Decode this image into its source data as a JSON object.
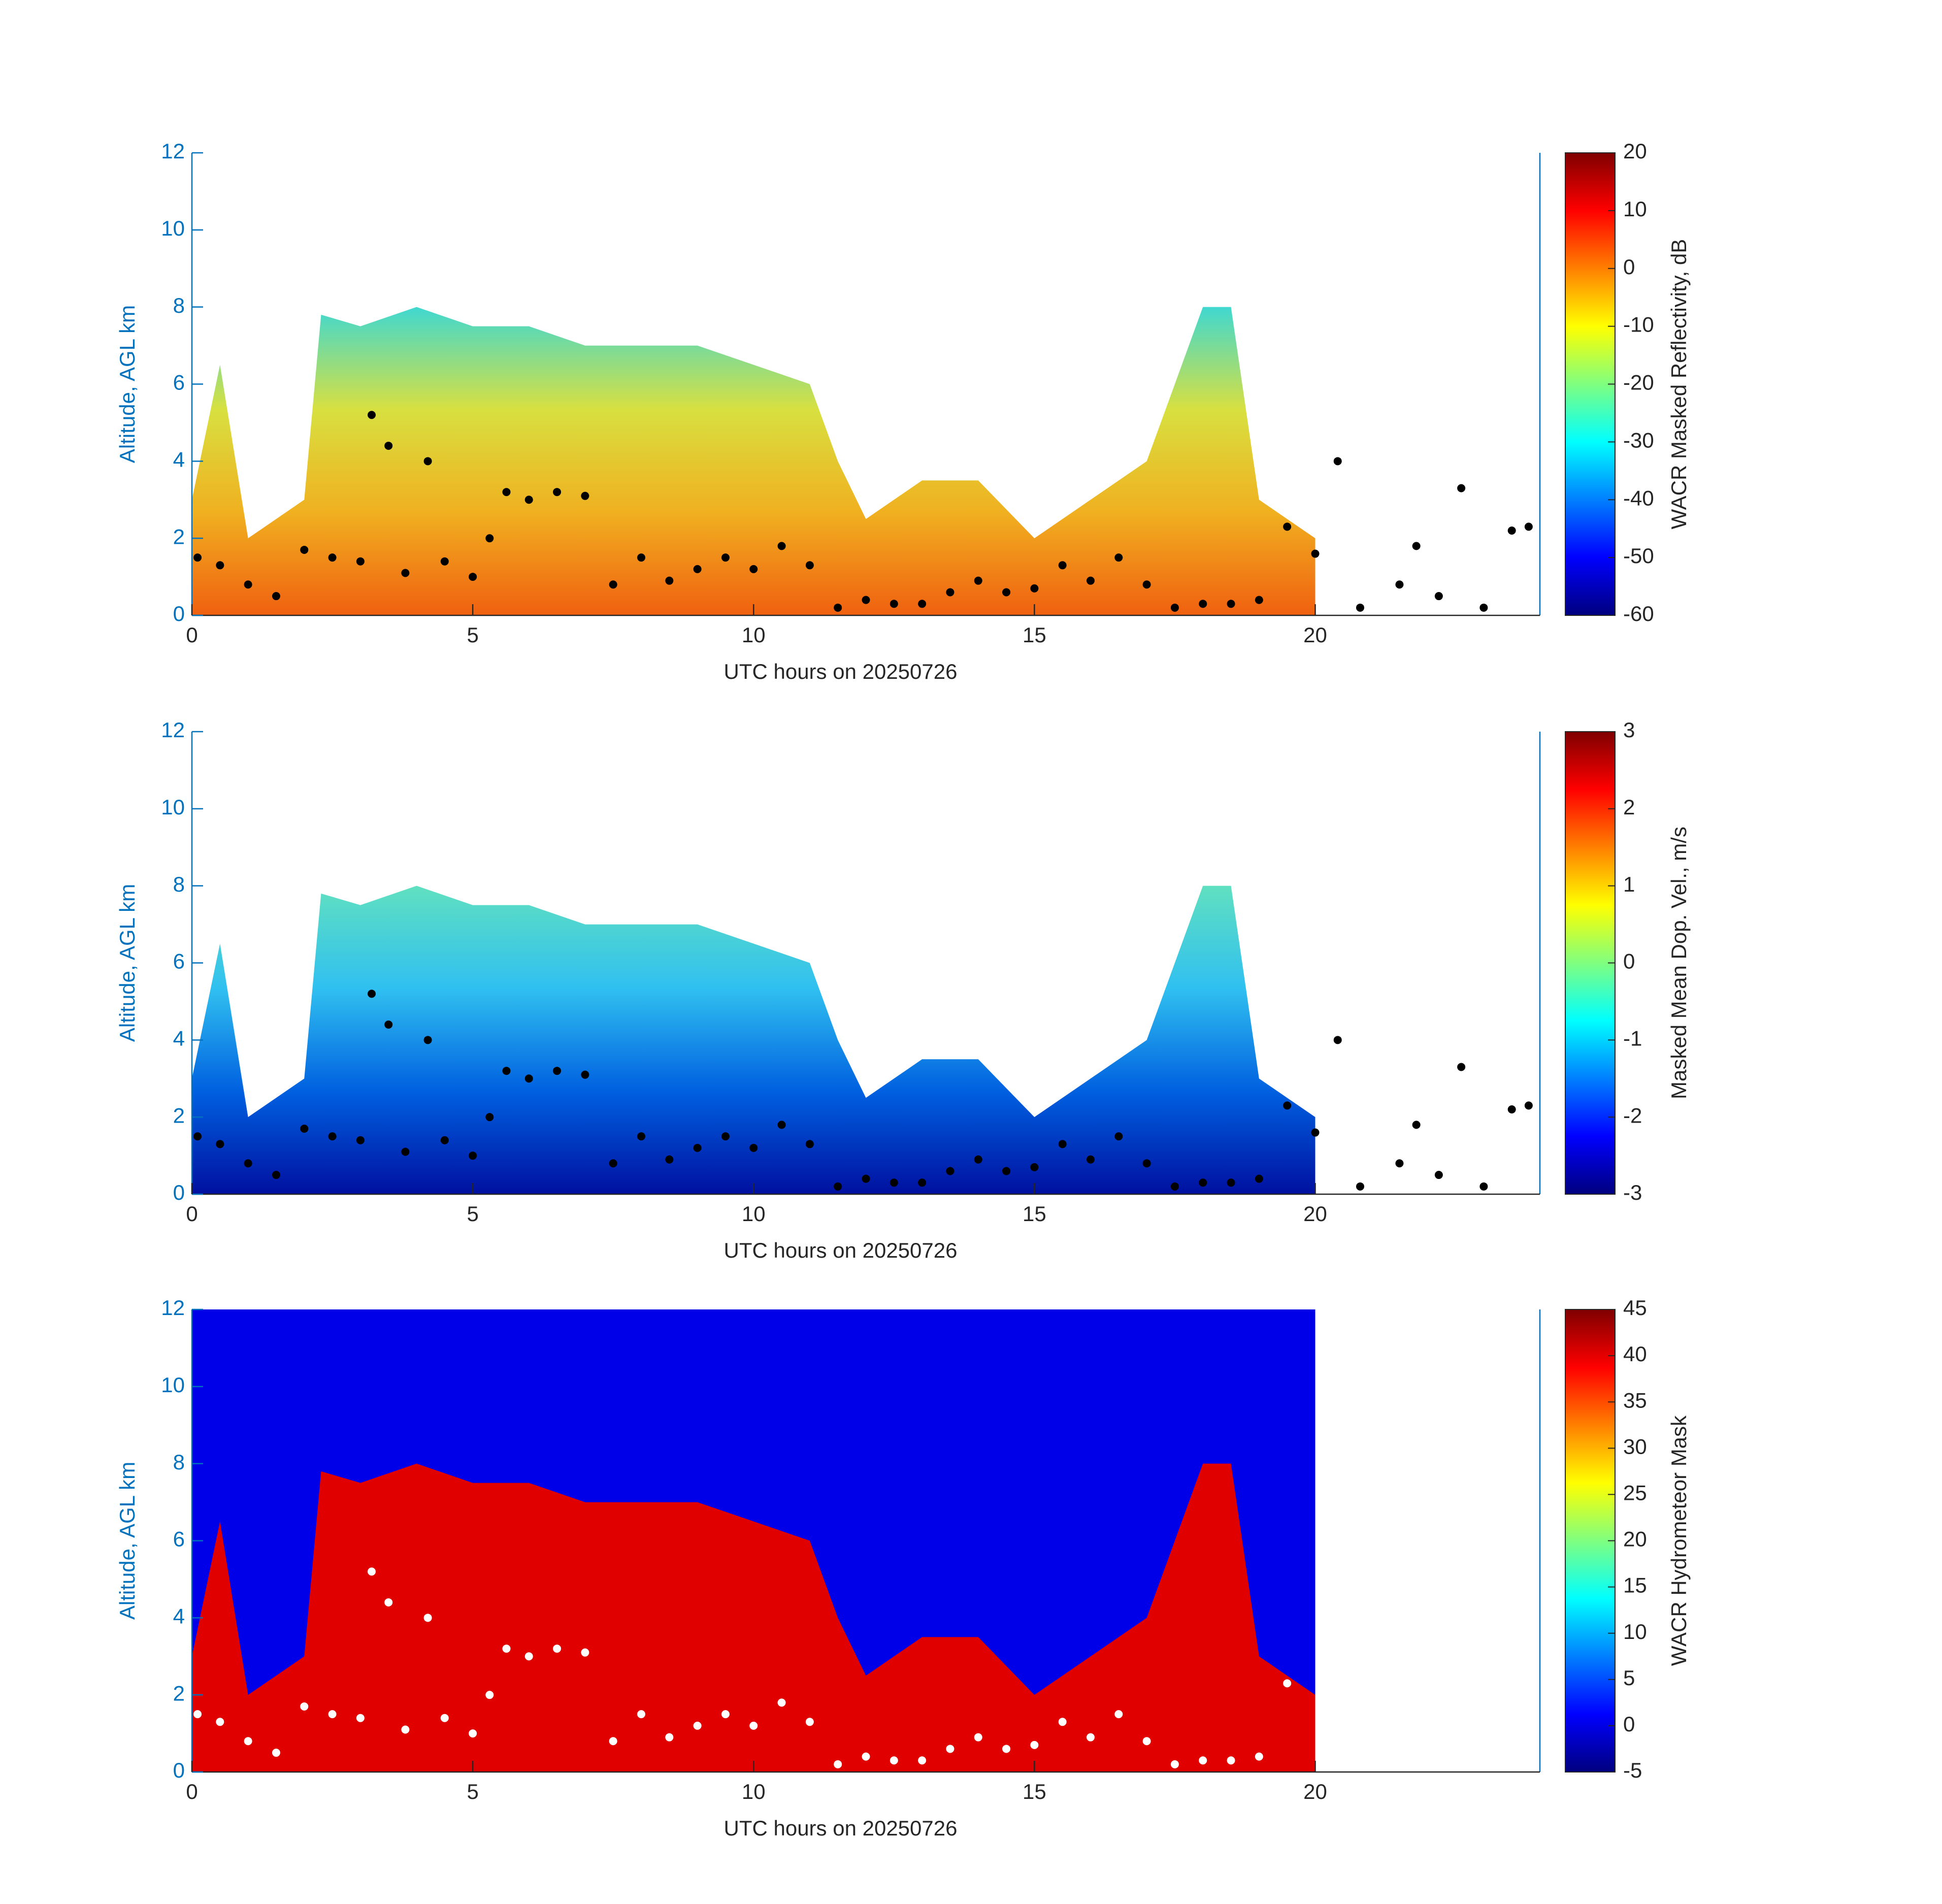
{
  "chart_data": [
    {
      "type": "area",
      "xlabel": "UTC hours on 20250726",
      "ylabel": "Altitude, AGL km",
      "xlim": [
        0,
        24
      ],
      "xticks": [
        0,
        5,
        10,
        15,
        20
      ],
      "ylim": [
        0,
        12
      ],
      "yticks": [
        0,
        2,
        4,
        6,
        8,
        10,
        12
      ],
      "area_colors": [
        "#f06010",
        "#f0b020",
        "#d8e040",
        "#40d8d0"
      ],
      "echo_top": {
        "x": [
          0,
          0.5,
          1,
          2,
          2.3,
          3,
          4,
          5,
          6,
          7,
          8,
          9,
          10,
          11,
          11.5,
          12,
          13,
          14,
          15,
          16,
          17,
          18,
          18.5,
          19,
          19.5,
          20
        ],
        "values": [
          3,
          6.5,
          2,
          3,
          7.8,
          7.5,
          8,
          7.5,
          7.5,
          7,
          7,
          7,
          6.5,
          6,
          4,
          2.5,
          3.5,
          3.5,
          2,
          3,
          4,
          8,
          8,
          3,
          2.5,
          2
        ]
      },
      "cloud_base": {
        "color": "#000000",
        "x": [
          0.1,
          0.5,
          1,
          1.5,
          2,
          2.5,
          3,
          3.2,
          3.5,
          3.8,
          4.2,
          4.5,
          5,
          5.3,
          5.6,
          6,
          6.5,
          7,
          7.5,
          8,
          8.5,
          9,
          9.5,
          10,
          10.5,
          11,
          11.5,
          12,
          12.5,
          13,
          13.5,
          14,
          14.5,
          15,
          15.5,
          16,
          16.5,
          17,
          17.5,
          18,
          18.5,
          19,
          19.5,
          20,
          20.4,
          20.8,
          21.5,
          21.8,
          22.2,
          22.6,
          23,
          23.5,
          23.8
        ],
        "values": [
          1.5,
          1.3,
          0.8,
          0.5,
          1.7,
          1.5,
          1.4,
          5.2,
          4.4,
          1.1,
          4.0,
          1.4,
          1.0,
          2.0,
          3.2,
          3.0,
          3.2,
          3.1,
          0.8,
          1.5,
          0.9,
          1.2,
          1.5,
          1.2,
          1.8,
          1.3,
          0.2,
          0.4,
          0.3,
          0.3,
          0.6,
          0.9,
          0.6,
          0.7,
          1.3,
          0.9,
          1.5,
          0.8,
          0.2,
          0.3,
          0.3,
          0.4,
          2.3,
          1.6,
          4.0,
          0.2,
          0.8,
          1.8,
          0.5,
          3.3,
          0.2,
          2.2,
          2.3
        ]
      },
      "colorbar": {
        "label": "WACR Masked Reflectivity, dB",
        "lim": [
          -60,
          20
        ],
        "ticks": [
          -60,
          -50,
          -40,
          -30,
          -20,
          -10,
          0,
          10,
          20
        ]
      }
    },
    {
      "type": "area",
      "xlabel": "UTC hours on 20250726",
      "ylabel": "Altitude, AGL km",
      "xlim": [
        0,
        24
      ],
      "xticks": [
        0,
        5,
        10,
        15,
        20
      ],
      "ylim": [
        0,
        12
      ],
      "yticks": [
        0,
        2,
        4,
        6,
        8,
        10,
        12
      ],
      "area_colors": [
        "#0010a0",
        "#0060e0",
        "#30c0f0",
        "#60e0c0"
      ],
      "echo_top": {
        "x": [
          0,
          0.5,
          1,
          2,
          2.3,
          3,
          4,
          5,
          6,
          7,
          8,
          9,
          10,
          11,
          11.5,
          12,
          13,
          14,
          15,
          16,
          17,
          18,
          18.5,
          19,
          19.5,
          20
        ],
        "values": [
          3,
          6.5,
          2,
          3,
          7.8,
          7.5,
          8,
          7.5,
          7.5,
          7,
          7,
          7,
          6.5,
          6,
          4,
          2.5,
          3.5,
          3.5,
          2,
          3,
          4,
          8,
          8,
          3,
          2.5,
          2
        ]
      },
      "cloud_base": {
        "color": "#000000",
        "x": [
          0.1,
          0.5,
          1,
          1.5,
          2,
          2.5,
          3,
          3.2,
          3.5,
          3.8,
          4.2,
          4.5,
          5,
          5.3,
          5.6,
          6,
          6.5,
          7,
          7.5,
          8,
          8.5,
          9,
          9.5,
          10,
          10.5,
          11,
          11.5,
          12,
          12.5,
          13,
          13.5,
          14,
          14.5,
          15,
          15.5,
          16,
          16.5,
          17,
          17.5,
          18,
          18.5,
          19,
          19.5,
          20,
          20.4,
          20.8,
          21.5,
          21.8,
          22.2,
          22.6,
          23,
          23.5,
          23.8
        ],
        "values": [
          1.5,
          1.3,
          0.8,
          0.5,
          1.7,
          1.5,
          1.4,
          5.2,
          4.4,
          1.1,
          4.0,
          1.4,
          1.0,
          2.0,
          3.2,
          3.0,
          3.2,
          3.1,
          0.8,
          1.5,
          0.9,
          1.2,
          1.5,
          1.2,
          1.8,
          1.3,
          0.2,
          0.4,
          0.3,
          0.3,
          0.6,
          0.9,
          0.6,
          0.7,
          1.3,
          0.9,
          1.5,
          0.8,
          0.2,
          0.3,
          0.3,
          0.4,
          2.3,
          1.6,
          4.0,
          0.2,
          0.8,
          1.8,
          0.5,
          3.3,
          0.2,
          2.2,
          2.3
        ]
      },
      "colorbar": {
        "label": "Masked Mean Dop. Vel., m/s",
        "lim": [
          -3,
          3
        ],
        "ticks": [
          -3,
          -2,
          -1,
          0,
          1,
          2,
          3
        ]
      }
    },
    {
      "type": "area",
      "xlabel": "UTC hours on 20250726",
      "ylabel": "Altitude, AGL km",
      "xlim": [
        0,
        24
      ],
      "xticks": [
        0,
        5,
        10,
        15,
        20
      ],
      "ylim": [
        0,
        12
      ],
      "yticks": [
        0,
        2,
        4,
        6,
        8,
        10,
        12
      ],
      "background": {
        "color": "#0000e8",
        "x": [
          0,
          20
        ]
      },
      "area_colors": [
        "#e00000",
        "#e00000",
        "#e00000",
        "#e00000"
      ],
      "echo_top": {
        "x": [
          0,
          0.5,
          1,
          2,
          2.3,
          3,
          4,
          5,
          6,
          7,
          8,
          9,
          10,
          11,
          11.5,
          12,
          13,
          14,
          15,
          16,
          17,
          18,
          18.5,
          19,
          19.5,
          20
        ],
        "values": [
          3,
          6.5,
          2,
          3,
          7.8,
          7.5,
          8,
          7.5,
          7.5,
          7,
          7,
          7,
          6.5,
          6,
          4,
          2.5,
          3.5,
          3.5,
          2,
          3,
          4,
          8,
          8,
          3,
          2.5,
          2
        ]
      },
      "cloud_base": {
        "color": "#ffffff",
        "x": [
          0.1,
          0.5,
          1,
          1.5,
          2,
          2.5,
          3,
          3.2,
          3.5,
          3.8,
          4.2,
          4.5,
          5,
          5.3,
          5.6,
          6,
          6.5,
          7,
          7.5,
          8,
          8.5,
          9,
          9.5,
          10,
          10.5,
          11,
          11.5,
          12,
          12.5,
          13,
          13.5,
          14,
          14.5,
          15,
          15.5,
          16,
          16.5,
          17,
          17.5,
          18,
          18.5,
          19,
          19.5
        ],
        "values": [
          1.5,
          1.3,
          0.8,
          0.5,
          1.7,
          1.5,
          1.4,
          5.2,
          4.4,
          1.1,
          4.0,
          1.4,
          1.0,
          2.0,
          3.2,
          3.0,
          3.2,
          3.1,
          0.8,
          1.5,
          0.9,
          1.2,
          1.5,
          1.2,
          1.8,
          1.3,
          0.2,
          0.4,
          0.3,
          0.3,
          0.6,
          0.9,
          0.6,
          0.7,
          1.3,
          0.9,
          1.5,
          0.8,
          0.2,
          0.3,
          0.3,
          0.4,
          2.3
        ]
      },
      "colorbar": {
        "label": "WACR Hydrometeor Mask",
        "lim": [
          -5,
          45
        ],
        "ticks": [
          -5,
          0,
          5,
          10,
          15,
          20,
          25,
          30,
          35,
          40,
          45
        ]
      }
    }
  ]
}
